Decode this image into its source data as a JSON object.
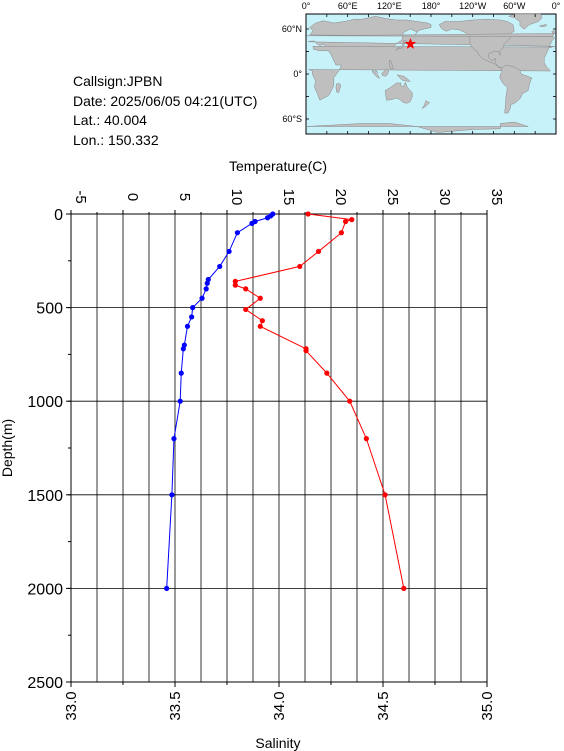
{
  "info": {
    "callsign": "Callsign:JPBN",
    "date": "Date:  2025/06/05 04:21(UTC)",
    "lat": "Lat.:  40.004",
    "lon": "Lon.:  150.332"
  },
  "map": {
    "top_lon_labels": [
      "0°",
      "60°E",
      "120°E",
      "180°",
      "120°W",
      "60°W",
      "0°"
    ],
    "lat_labels": [
      "60°N",
      "0°",
      "60°S"
    ],
    "ocean_color": "#c8f2fa",
    "land_color": "#bfbfbf",
    "marker": {
      "lon": 150.332,
      "lat": 40.004,
      "color": "#ff0000",
      "icon": "star-icon"
    }
  },
  "chart_data": {
    "type": "line",
    "xlabel_top": "Temperature(C)",
    "xlabel_bottom": "Salinity",
    "ylabel": "Depth(m)",
    "temperature_ticks": [
      "-5",
      "0",
      "5",
      "10",
      "15",
      "20",
      "25",
      "30",
      "35"
    ],
    "salinity_ticks": [
      "33.0",
      "33.5",
      "34.0",
      "34.5",
      "35.0"
    ],
    "depth_ticks": [
      "0",
      "500",
      "1000",
      "1500",
      "2000",
      "2500"
    ],
    "xlim_temperature": [
      -5,
      35
    ],
    "xlim_salinity": [
      33.0,
      35.0
    ],
    "ylim_depth": [
      0,
      2500
    ],
    "grid": true,
    "series": [
      {
        "color": "#0000ff",
        "axis": "temperature",
        "points": [
          [
            14.4,
            0
          ],
          [
            14.2,
            10
          ],
          [
            13.9,
            20
          ],
          [
            12.7,
            40
          ],
          [
            12.4,
            50
          ],
          [
            11.0,
            100
          ],
          [
            10.2,
            200
          ],
          [
            9.3,
            280
          ],
          [
            8.2,
            350
          ],
          [
            8.1,
            370
          ],
          [
            8.0,
            400
          ],
          [
            7.6,
            450
          ],
          [
            6.7,
            500
          ],
          [
            6.6,
            550
          ],
          [
            6.2,
            600
          ],
          [
            5.9,
            700
          ],
          [
            5.8,
            720
          ],
          [
            5.6,
            850
          ],
          [
            5.5,
            1000
          ],
          [
            4.9,
            1200
          ],
          [
            4.7,
            1500
          ],
          [
            4.2,
            2000
          ]
        ]
      },
      {
        "color": "#ff0000",
        "axis": "salinity",
        "points": [
          [
            34.14,
            0
          ],
          [
            34.35,
            30
          ],
          [
            34.32,
            40
          ],
          [
            34.3,
            100
          ],
          [
            34.19,
            200
          ],
          [
            34.1,
            280
          ],
          [
            33.79,
            360
          ],
          [
            33.79,
            380
          ],
          [
            33.84,
            400
          ],
          [
            33.91,
            450
          ],
          [
            33.84,
            510
          ],
          [
            33.92,
            570
          ],
          [
            33.91,
            600
          ],
          [
            34.13,
            720
          ],
          [
            34.13,
            730
          ],
          [
            34.23,
            850
          ],
          [
            34.34,
            1000
          ],
          [
            34.42,
            1200
          ],
          [
            34.51,
            1500
          ],
          [
            34.6,
            2000
          ]
        ]
      }
    ]
  }
}
